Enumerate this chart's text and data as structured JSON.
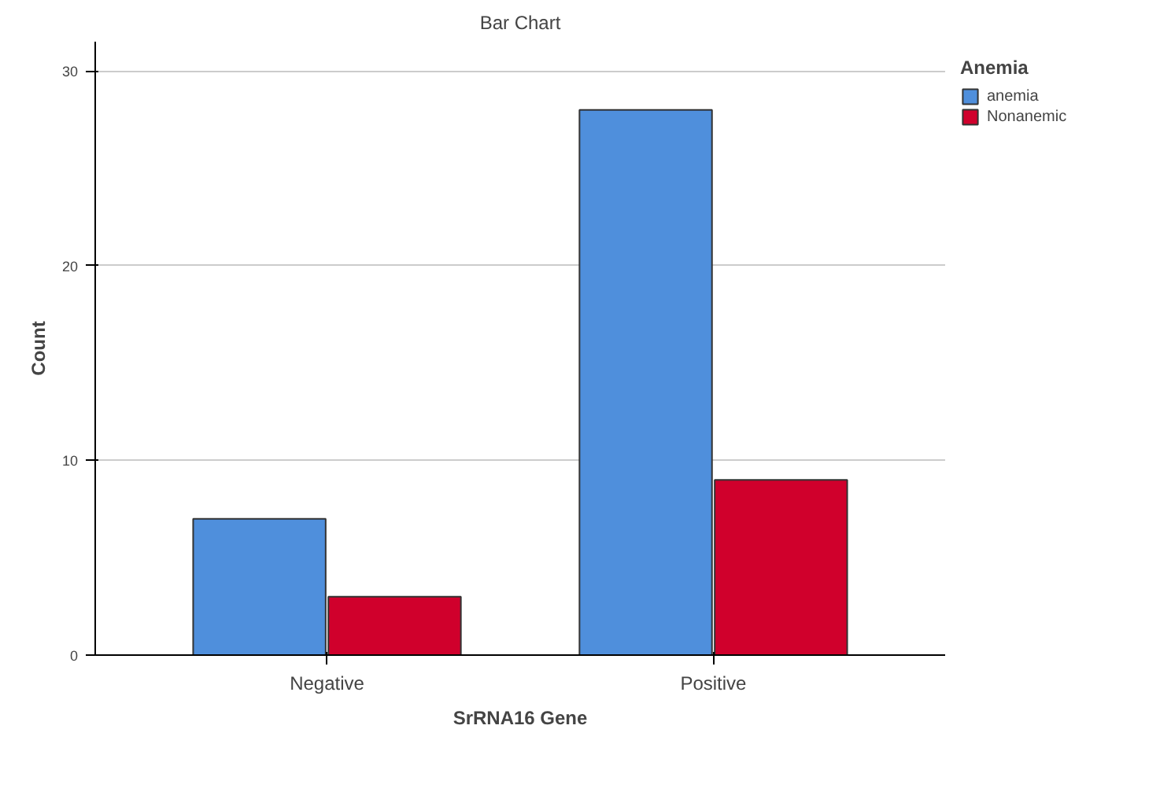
{
  "chart_data": {
    "type": "bar",
    "title": "Bar Chart",
    "xlabel": "SrRNA16 Gene",
    "ylabel": "Count",
    "legend_title": "Anemia",
    "categories": [
      "Negative",
      "Positive"
    ],
    "series": [
      {
        "name": "anemia",
        "color": "#4f8fdc",
        "values": [
          7,
          28
        ]
      },
      {
        "name": "Nonanemic",
        "color": "#d0002c",
        "values": [
          3,
          9
        ]
      }
    ],
    "ylim": [
      0,
      31.5
    ],
    "yticks": [
      0,
      10,
      20,
      30
    ],
    "grid": "y",
    "legend": "top right"
  }
}
